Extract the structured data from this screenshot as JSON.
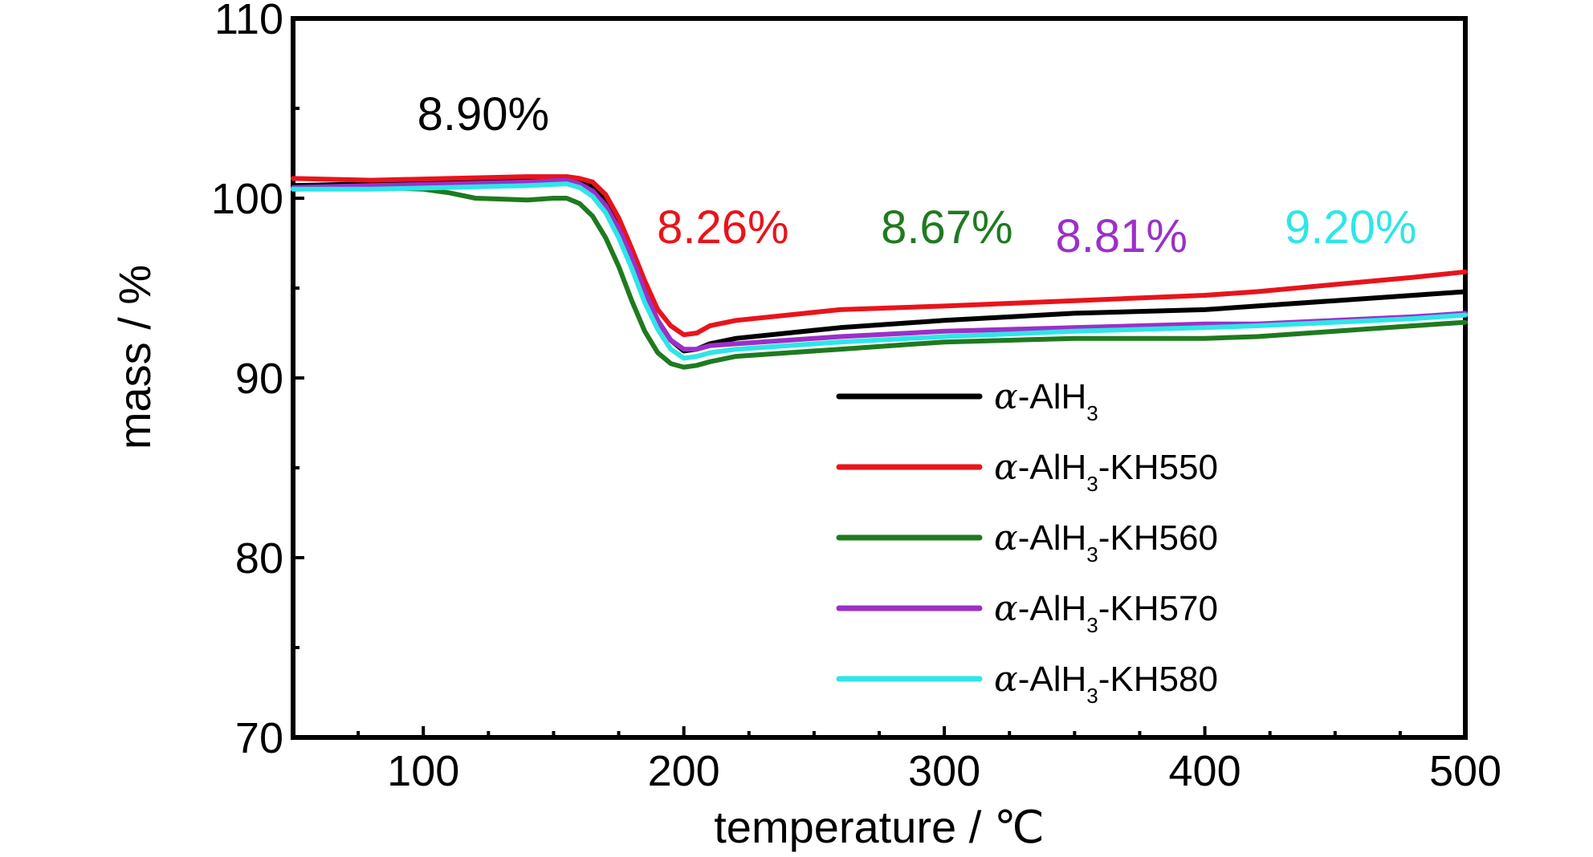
{
  "chart_data": {
    "type": "line",
    "xlabel": "temperature / ℃",
    "ylabel": "mass / %",
    "xlim": [
      50,
      500
    ],
    "ylim": [
      70,
      110
    ],
    "x_ticks": [
      100,
      200,
      300,
      400,
      500
    ],
    "x_tick_labels": [
      "100",
      "200",
      "300",
      "400",
      "500"
    ],
    "y_ticks": [
      70,
      80,
      90,
      100,
      110
    ],
    "y_tick_labels": [
      "70",
      "80",
      "90",
      "100",
      "110"
    ],
    "grid": false,
    "legend_position": "lower-right",
    "series": [
      {
        "name": "α-AlH3",
        "legend": {
          "greek": "α",
          "base": "-AlH",
          "sub": "3",
          "suffix": ""
        },
        "color": "#000000",
        "x": [
          50,
          80,
          110,
          140,
          155,
          160,
          165,
          170,
          175,
          180,
          185,
          190,
          195,
          200,
          205,
          210,
          220,
          240,
          260,
          300,
          350,
          400,
          420,
          450,
          480,
          500
        ],
        "y": [
          100.7,
          100.8,
          100.9,
          101.0,
          101.0,
          100.9,
          100.7,
          99.9,
          98.5,
          96.8,
          94.8,
          93.2,
          92.1,
          91.5,
          91.6,
          91.9,
          92.2,
          92.5,
          92.8,
          93.2,
          93.6,
          93.8,
          94.0,
          94.3,
          94.6,
          94.8
        ]
      },
      {
        "name": "α-AlH3-KH550",
        "legend": {
          "greek": "α",
          "base": "-AlH",
          "sub": "3",
          "suffix": "-KH550"
        },
        "color": "#e8141b",
        "x": [
          50,
          80,
          110,
          140,
          155,
          160,
          165,
          170,
          175,
          180,
          185,
          190,
          195,
          200,
          205,
          210,
          220,
          240,
          260,
          300,
          350,
          400,
          420,
          450,
          480,
          500
        ],
        "y": [
          101.1,
          101.0,
          101.1,
          101.2,
          101.2,
          101.1,
          100.9,
          100.2,
          98.9,
          97.2,
          95.4,
          93.8,
          92.9,
          92.4,
          92.5,
          92.9,
          93.2,
          93.5,
          93.8,
          94.0,
          94.3,
          94.6,
          94.8,
          95.2,
          95.6,
          95.9
        ]
      },
      {
        "name": "α-AlH3-KH560",
        "legend": {
          "greek": "α",
          "base": "-AlH",
          "sub": "3",
          "suffix": "-KH560"
        },
        "color": "#1f7a1f",
        "x": [
          50,
          80,
          100,
          110,
          120,
          140,
          150,
          155,
          160,
          165,
          170,
          175,
          180,
          185,
          190,
          195,
          200,
          205,
          210,
          220,
          240,
          260,
          300,
          350,
          400,
          420,
          450,
          480,
          500
        ],
        "y": [
          100.5,
          100.6,
          100.5,
          100.3,
          100.0,
          99.9,
          100.0,
          100.0,
          99.7,
          99.0,
          97.8,
          96.2,
          94.3,
          92.6,
          91.4,
          90.8,
          90.6,
          90.7,
          90.9,
          91.2,
          91.4,
          91.6,
          92.0,
          92.2,
          92.2,
          92.3,
          92.6,
          92.9,
          93.1
        ]
      },
      {
        "name": "α-AlH3-KH570",
        "legend": {
          "greek": "α",
          "base": "-AlH",
          "sub": "3",
          "suffix": "-KH570"
        },
        "color": "#9b30c8",
        "x": [
          50,
          80,
          110,
          140,
          155,
          160,
          165,
          170,
          175,
          180,
          185,
          190,
          195,
          200,
          205,
          210,
          220,
          240,
          260,
          300,
          350,
          400,
          420,
          450,
          480,
          500
        ],
        "y": [
          100.6,
          100.7,
          100.8,
          100.9,
          101.0,
          100.8,
          100.4,
          99.6,
          98.3,
          96.7,
          94.8,
          93.2,
          92.1,
          91.6,
          91.6,
          91.8,
          91.9,
          92.1,
          92.3,
          92.6,
          92.8,
          93.0,
          93.0,
          93.2,
          93.4,
          93.6
        ]
      },
      {
        "name": "α-AlH3-KH580",
        "legend": {
          "greek": "α",
          "base": "-AlH",
          "sub": "3",
          "suffix": "-KH580"
        },
        "color": "#2ee6e6",
        "x": [
          50,
          80,
          110,
          140,
          155,
          160,
          165,
          170,
          175,
          180,
          185,
          190,
          195,
          200,
          205,
          210,
          220,
          240,
          260,
          300,
          350,
          400,
          420,
          450,
          480,
          500
        ],
        "y": [
          100.5,
          100.5,
          100.6,
          100.7,
          100.8,
          100.6,
          100.1,
          99.2,
          97.8,
          96.1,
          94.2,
          92.7,
          91.6,
          91.1,
          91.2,
          91.4,
          91.6,
          91.8,
          92.0,
          92.3,
          92.6,
          92.8,
          92.9,
          93.1,
          93.3,
          93.5
        ]
      }
    ],
    "annotations": [
      {
        "text": "8.90%",
        "x": 123,
        "y": 103.8,
        "color": "#000000"
      },
      {
        "text": "8.26%",
        "x": 215,
        "y": 97.5,
        "color": "#e8141b"
      },
      {
        "text": "8.67%",
        "x": 301,
        "y": 97.5,
        "color": "#1f7a1f"
      },
      {
        "text": "8.81%",
        "x": 368,
        "y": 97.0,
        "color": "#9b30c8"
      },
      {
        "text": "9.20%",
        "x": 456,
        "y": 97.5,
        "color": "#2ee6e6"
      }
    ]
  }
}
